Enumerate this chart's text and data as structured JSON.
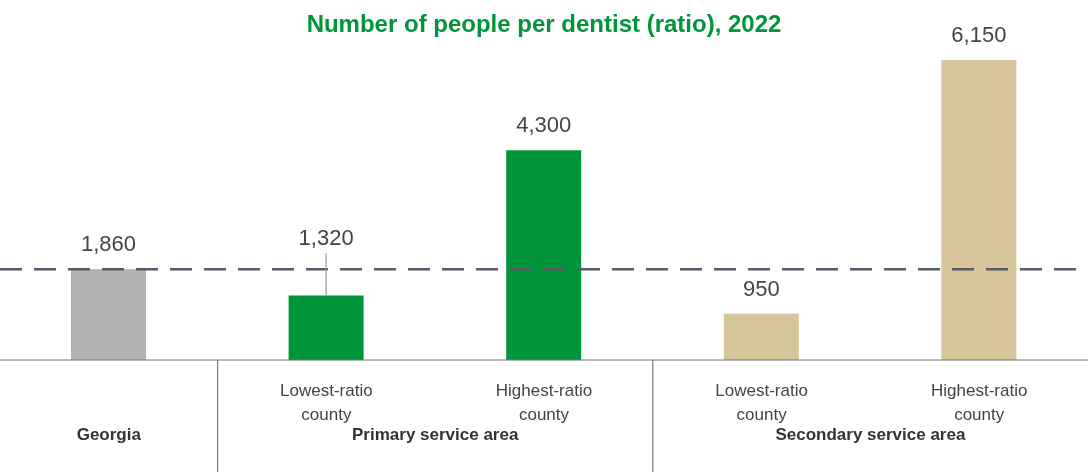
{
  "chart_data": {
    "type": "bar",
    "title": "Number of people per dentist (ratio), 2022",
    "categories": [
      null,
      "Lowest-ratio county",
      "Highest-ratio county",
      "Lowest-ratio county",
      "Highest-ratio county"
    ],
    "values": [
      1860,
      1320,
      4300,
      950,
      6150
    ],
    "value_labels": [
      "1,860",
      "1,320",
      "4,300",
      "950",
      "6,150"
    ],
    "colors": [
      "#b1b2b4",
      "#00953b",
      "#00953b",
      "#d7c59c",
      "#d7c59c"
    ],
    "ref_lines": [
      {
        "axis": "y",
        "value": 1860,
        "color": "#555a66",
        "line_style": "dashed"
      }
    ],
    "annotations": [
      "Georgia",
      "Primary service area",
      "Secondary service area"
    ],
    "grid": false,
    "legend": false
  }
}
